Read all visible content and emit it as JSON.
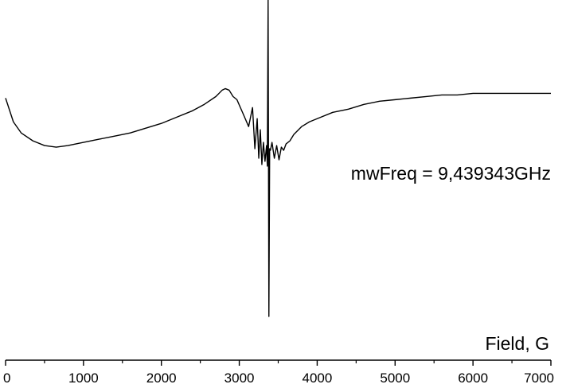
{
  "chart_data": {
    "type": "line",
    "xlabel": "Field, G",
    "ylabel": "",
    "xlim": [
      0,
      7000
    ],
    "ylim": [
      -1.0,
      1.0
    ],
    "x_ticks": [
      0,
      1000,
      2000,
      3000,
      4000,
      5000,
      6000,
      7000
    ],
    "x_tick_labels": [
      "0",
      "1000",
      "2000",
      "3000",
      "4000",
      "5000",
      "6000",
      "7000"
    ],
    "y_axis_visible": false,
    "grid": false,
    "annotation": "mwFreq = 9,439343GHz",
    "series": [
      {
        "color": "#000000",
        "x": [
          0,
          100,
          200,
          350,
          500,
          650,
          800,
          1000,
          1200,
          1400,
          1600,
          1800,
          2000,
          2200,
          2400,
          2550,
          2700,
          2780,
          2820,
          2870,
          2920,
          2970,
          3050,
          3120,
          3170,
          3200,
          3230,
          3250,
          3270,
          3290,
          3310,
          3330,
          3350,
          3360,
          3370,
          3380,
          3390,
          3400,
          3420,
          3450,
          3480,
          3510,
          3540,
          3570,
          3600,
          3650,
          3700,
          3800,
          3900,
          4000,
          4200,
          4400,
          4600,
          4800,
          5000,
          5200,
          5400,
          5600,
          5800,
          6000,
          6200,
          6400,
          6600,
          6800,
          7000
        ],
        "y": [
          0.38,
          0.23,
          0.16,
          0.11,
          0.08,
          0.07,
          0.08,
          0.1,
          0.12,
          0.14,
          0.16,
          0.19,
          0.22,
          0.26,
          0.3,
          0.34,
          0.39,
          0.43,
          0.44,
          0.43,
          0.39,
          0.37,
          0.28,
          0.2,
          0.32,
          0.06,
          0.25,
          0.0,
          0.18,
          -0.04,
          0.1,
          -0.02,
          0.08,
          -0.05,
          1.0,
          -1.0,
          0.06,
          0.05,
          0.1,
          0.0,
          0.08,
          -0.01,
          0.07,
          0.05,
          0.09,
          0.11,
          0.15,
          0.2,
          0.23,
          0.25,
          0.29,
          0.31,
          0.34,
          0.36,
          0.37,
          0.38,
          0.39,
          0.4,
          0.4,
          0.41,
          0.41,
          0.41,
          0.41,
          0.41,
          0.41
        ]
      }
    ]
  }
}
